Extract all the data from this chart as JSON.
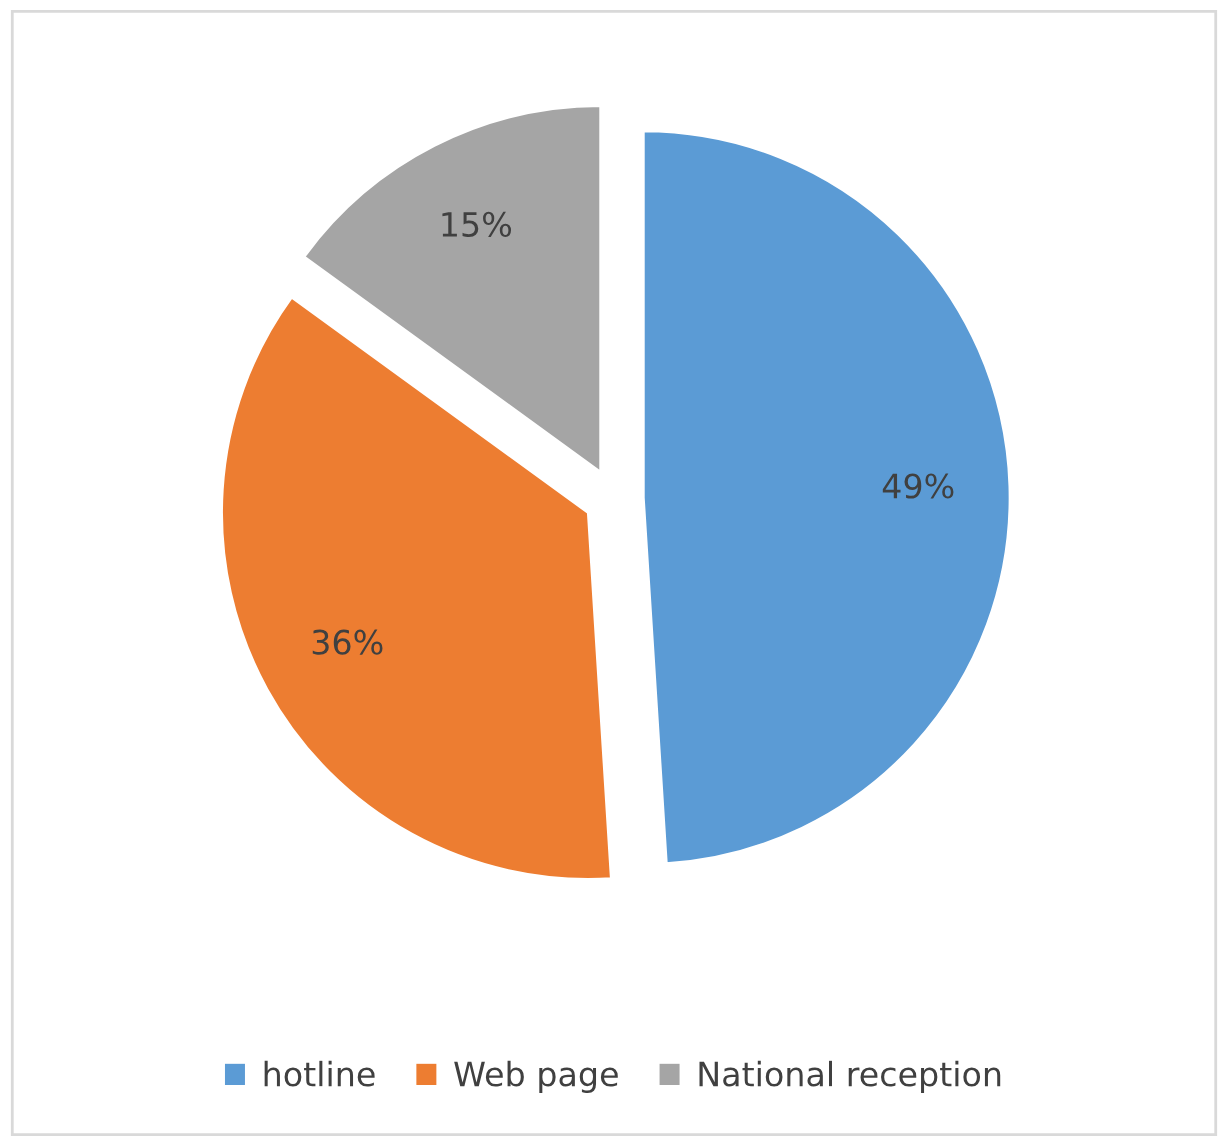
{
  "chart_data": {
    "type": "pie",
    "categories": [
      "hotline",
      "Web page",
      "National reception"
    ],
    "values": [
      49,
      36,
      15
    ],
    "colors": [
      "#5b9bd5",
      "#ed7d31",
      "#a5a5a5"
    ],
    "value_labels": [
      "49%",
      "36%",
      "15%"
    ],
    "legend": "bottom"
  }
}
